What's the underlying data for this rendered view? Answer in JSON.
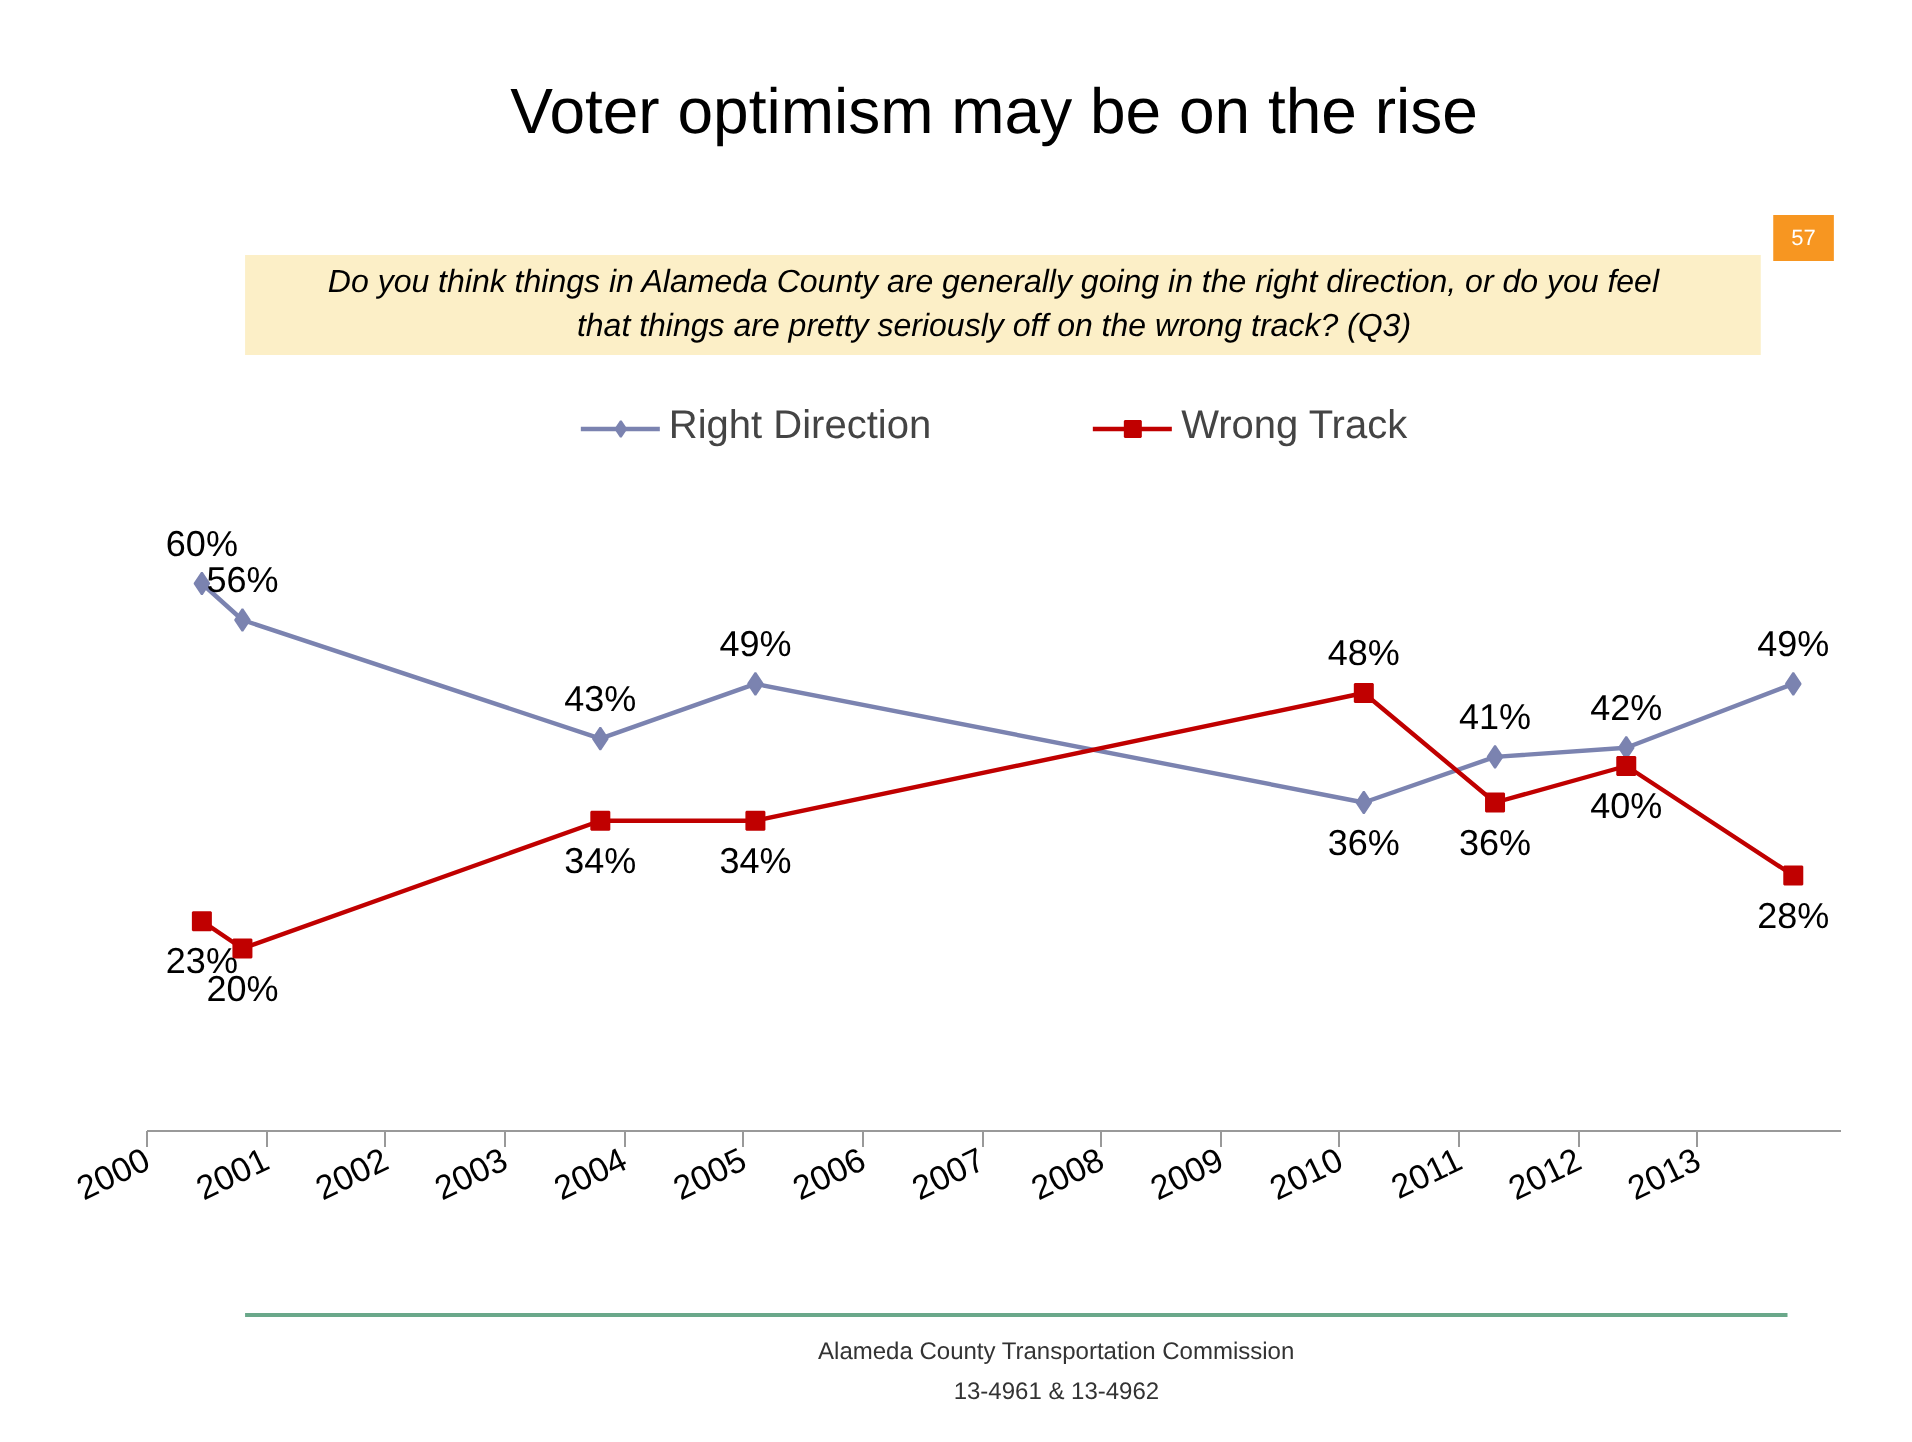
{
  "chart_data": {
    "type": "line",
    "title": "Voter optimism may be on the rise",
    "subtitle": "Do you think things in Alameda County are generally going in the right direction, or do you feel that things are pretty seriously off on the wrong track? (Q3)",
    "annotations": [
      "57",
      "Alameda County Transportation Commission",
      "13-4961 & 13-4962"
    ],
    "x": [
      2000.46,
      2000.8,
      2003.8,
      2005.1,
      2010.2,
      2011.3,
      2012.4,
      2013.8
    ],
    "xlim": [
      2000,
      2014.2
    ],
    "xticks": [
      2000,
      2001,
      2002,
      2003,
      2004,
      2005,
      2006,
      2007,
      2008,
      2009,
      2010,
      2011,
      2012,
      2013
    ],
    "series": [
      {
        "name": "Right Direction",
        "color": "#7b83b0",
        "marker": "diamond",
        "values": [
          60,
          56,
          43,
          49,
          36,
          41,
          42,
          49
        ],
        "value_labels": [
          "60%",
          "56%",
          "43%",
          "49%",
          "36%",
          "41%",
          "42%",
          "49%"
        ]
      },
      {
        "name": "Wrong Track",
        "color": "#c00000",
        "marker": "square",
        "values": [
          23,
          20,
          34,
          34,
          48,
          36,
          40,
          28
        ],
        "value_labels": [
          "23%",
          "20%",
          "34%",
          "34%",
          "48%",
          "36%",
          "40%",
          "28%"
        ]
      }
    ],
    "grid": false,
    "legend": "top",
    "tick_labels": "x"
  }
}
